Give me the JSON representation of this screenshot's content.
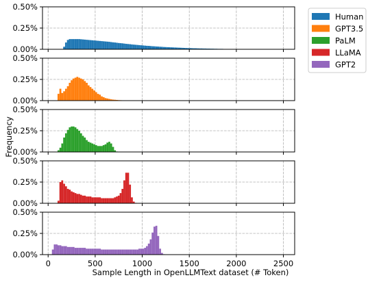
{
  "chart_data": {
    "type": "bar",
    "subtype": "stacked-panel-histogram",
    "xlabel": "Sample Length in OpenLLMText dataset (# Token)",
    "ylabel": "Frequency",
    "xlim": [
      -60,
      2620
    ],
    "ylim": [
      0,
      0.005
    ],
    "x_ticks": [
      0,
      500,
      1000,
      1500,
      2000,
      2500
    ],
    "x_tick_labels": [
      "0",
      "500",
      "1000",
      "1500",
      "2000",
      "2500"
    ],
    "y_ticks": [
      0,
      0.0025,
      0.005
    ],
    "y_tick_labels": [
      "0.00%",
      "0.25%",
      "0.50%"
    ],
    "grid": true,
    "legend_position": "outside-top-right",
    "bin_width": 20,
    "series": [
      {
        "name": "Human",
        "color": "#1f77b4",
        "bins": [
          [
            160,
            0.0003
          ],
          [
            180,
            0.0008
          ],
          [
            200,
            0.0011
          ],
          [
            220,
            0.0012
          ],
          [
            240,
            0.0012
          ],
          [
            260,
            0.0012
          ],
          [
            280,
            0.0012
          ],
          [
            300,
            0.0012
          ],
          [
            320,
            0.0012
          ],
          [
            340,
            0.00118
          ],
          [
            360,
            0.00116
          ],
          [
            380,
            0.00114
          ],
          [
            400,
            0.00112
          ],
          [
            420,
            0.0011
          ],
          [
            440,
            0.00108
          ],
          [
            460,
            0.00106
          ],
          [
            480,
            0.00104
          ],
          [
            500,
            0.00102
          ],
          [
            520,
            0.001
          ],
          [
            540,
            0.00098
          ],
          [
            560,
            0.00096
          ],
          [
            580,
            0.00094
          ],
          [
            600,
            0.00092
          ],
          [
            620,
            0.0009
          ],
          [
            640,
            0.00088
          ],
          [
            660,
            0.00085
          ],
          [
            680,
            0.00082
          ],
          [
            700,
            0.0008
          ],
          [
            720,
            0.00077
          ],
          [
            740,
            0.00074
          ],
          [
            760,
            0.00072
          ],
          [
            780,
            0.0007
          ],
          [
            800,
            0.00067
          ],
          [
            820,
            0.00064
          ],
          [
            840,
            0.00062
          ],
          [
            860,
            0.0006
          ],
          [
            880,
            0.00057
          ],
          [
            900,
            0.00055
          ],
          [
            920,
            0.00053
          ],
          [
            940,
            0.00051
          ],
          [
            960,
            0.00049
          ],
          [
            980,
            0.00047
          ],
          [
            1000,
            0.00045
          ],
          [
            1020,
            0.00043
          ],
          [
            1040,
            0.00041
          ],
          [
            1060,
            0.0004
          ],
          [
            1080,
            0.00038
          ],
          [
            1100,
            0.00036
          ],
          [
            1120,
            0.00035
          ],
          [
            1140,
            0.00033
          ],
          [
            1160,
            0.00032
          ],
          [
            1180,
            0.0003
          ],
          [
            1200,
            0.00029
          ],
          [
            1220,
            0.00027
          ],
          [
            1240,
            0.00026
          ],
          [
            1260,
            0.00025
          ],
          [
            1280,
            0.00024
          ],
          [
            1300,
            0.00023
          ],
          [
            1320,
            0.00022
          ],
          [
            1340,
            0.00021
          ],
          [
            1360,
            0.0002
          ],
          [
            1380,
            0.00019
          ],
          [
            1400,
            0.00018
          ],
          [
            1420,
            0.00017
          ],
          [
            1440,
            0.00016
          ],
          [
            1460,
            0.00015
          ],
          [
            1480,
            0.00014
          ],
          [
            1500,
            0.00014
          ],
          [
            1520,
            0.00013
          ],
          [
            1540,
            0.00012
          ],
          [
            1560,
            0.00012
          ],
          [
            1580,
            0.00011
          ],
          [
            1600,
            0.0001
          ],
          [
            1620,
            0.0001
          ],
          [
            1640,
            9e-05
          ],
          [
            1660,
            9e-05
          ],
          [
            1680,
            8e-05
          ],
          [
            1700,
            8e-05
          ],
          [
            1720,
            7e-05
          ],
          [
            1740,
            7e-05
          ],
          [
            1760,
            6e-05
          ],
          [
            1780,
            6e-05
          ],
          [
            1800,
            5e-05
          ],
          [
            1820,
            5e-05
          ],
          [
            1840,
            5e-05
          ],
          [
            1860,
            4e-05
          ],
          [
            1880,
            4e-05
          ],
          [
            1900,
            4e-05
          ],
          [
            1920,
            3e-05
          ],
          [
            1940,
            3e-05
          ],
          [
            1960,
            3e-05
          ],
          [
            1980,
            3e-05
          ],
          [
            2000,
            2e-05
          ],
          [
            2020,
            2e-05
          ],
          [
            2040,
            2e-05
          ],
          [
            2060,
            2e-05
          ],
          [
            2080,
            2e-05
          ],
          [
            2100,
            2e-05
          ],
          [
            2120,
            1e-05
          ],
          [
            2140,
            1e-05
          ],
          [
            2160,
            1e-05
          ],
          [
            2180,
            1e-05
          ],
          [
            2200,
            1e-05
          ],
          [
            2220,
            1e-05
          ],
          [
            2240,
            1e-05
          ],
          [
            2260,
            1e-05
          ],
          [
            2280,
            1e-05
          ]
        ]
      },
      {
        "name": "GPT3.5",
        "color": "#ff7f0e",
        "bins": [
          [
            100,
            0.0008
          ],
          [
            120,
            0.0014
          ],
          [
            140,
            0.0009
          ],
          [
            160,
            0.0011
          ],
          [
            180,
            0.0014
          ],
          [
            200,
            0.0017
          ],
          [
            220,
            0.0021
          ],
          [
            240,
            0.0024
          ],
          [
            260,
            0.0026
          ],
          [
            280,
            0.0027
          ],
          [
            300,
            0.0028
          ],
          [
            320,
            0.0027
          ],
          [
            340,
            0.0026
          ],
          [
            360,
            0.0025
          ],
          [
            380,
            0.0023
          ],
          [
            400,
            0.0021
          ],
          [
            420,
            0.0018
          ],
          [
            440,
            0.0016
          ],
          [
            460,
            0.0014
          ],
          [
            480,
            0.0012
          ],
          [
            500,
            0.001
          ],
          [
            520,
            0.0008
          ],
          [
            540,
            0.0007
          ],
          [
            560,
            0.0005
          ],
          [
            580,
            0.0004
          ],
          [
            600,
            0.0003
          ],
          [
            620,
            0.00025
          ],
          [
            640,
            0.0002
          ],
          [
            660,
            0.00015
          ],
          [
            680,
            0.00012
          ],
          [
            700,
            0.0001
          ],
          [
            720,
            8e-05
          ],
          [
            740,
            6e-05
          ],
          [
            760,
            5e-05
          ],
          [
            780,
            4e-05
          ],
          [
            800,
            3e-05
          ],
          [
            820,
            2e-05
          ]
        ]
      },
      {
        "name": "PaLM",
        "color": "#2ca02c",
        "bins": [
          [
            100,
            0.0002
          ],
          [
            120,
            0.0005
          ],
          [
            140,
            0.001
          ],
          [
            160,
            0.0017
          ],
          [
            180,
            0.0022
          ],
          [
            200,
            0.0026
          ],
          [
            220,
            0.0029
          ],
          [
            240,
            0.003
          ],
          [
            260,
            0.003
          ],
          [
            280,
            0.0029
          ],
          [
            300,
            0.0027
          ],
          [
            320,
            0.0025
          ],
          [
            340,
            0.0022
          ],
          [
            360,
            0.0019
          ],
          [
            380,
            0.0017
          ],
          [
            400,
            0.0014
          ],
          [
            420,
            0.0012
          ],
          [
            440,
            0.0011
          ],
          [
            460,
            0.001
          ],
          [
            480,
            0.0009
          ],
          [
            500,
            0.0008
          ],
          [
            520,
            0.0007
          ],
          [
            540,
            0.0007
          ],
          [
            560,
            0.0007
          ],
          [
            580,
            0.0008
          ],
          [
            600,
            0.0009
          ],
          [
            620,
            0.0011
          ],
          [
            640,
            0.0012
          ],
          [
            660,
            0.001
          ],
          [
            680,
            0.0006
          ],
          [
            700,
            0.0002
          ],
          [
            720,
            5e-05
          ]
        ]
      },
      {
        "name": "LLaMA",
        "color": "#d62728",
        "bins": [
          [
            100,
            0.0003
          ],
          [
            120,
            0.0025
          ],
          [
            140,
            0.0027
          ],
          [
            160,
            0.0023
          ],
          [
            180,
            0.002
          ],
          [
            200,
            0.0017
          ],
          [
            220,
            0.0016
          ],
          [
            240,
            0.0014
          ],
          [
            260,
            0.0013
          ],
          [
            280,
            0.0012
          ],
          [
            300,
            0.0011
          ],
          [
            320,
            0.0011
          ],
          [
            340,
            0.001
          ],
          [
            360,
            0.0009
          ],
          [
            380,
            0.0009
          ],
          [
            400,
            0.0008
          ],
          [
            420,
            0.0008
          ],
          [
            440,
            0.0008
          ],
          [
            460,
            0.0007
          ],
          [
            480,
            0.0007
          ],
          [
            500,
            0.0007
          ],
          [
            520,
            0.0007
          ],
          [
            540,
            0.0007
          ],
          [
            560,
            0.0006
          ],
          [
            580,
            0.0006
          ],
          [
            600,
            0.0006
          ],
          [
            620,
            0.0006
          ],
          [
            640,
            0.0006
          ],
          [
            660,
            0.0006
          ],
          [
            680,
            0.0006
          ],
          [
            700,
            0.0007
          ],
          [
            720,
            0.0008
          ],
          [
            740,
            0.0009
          ],
          [
            760,
            0.0012
          ],
          [
            780,
            0.0017
          ],
          [
            800,
            0.0027
          ],
          [
            820,
            0.0036
          ],
          [
            840,
            0.0036
          ],
          [
            860,
            0.0022
          ],
          [
            880,
            0.0007
          ],
          [
            900,
            0.0002
          ],
          [
            920,
            5e-05
          ]
        ]
      },
      {
        "name": "GPT2",
        "color": "#9467bd",
        "bins": [
          [
            40,
            0.0006
          ],
          [
            60,
            0.0012
          ],
          [
            80,
            0.0012
          ],
          [
            100,
            0.0011
          ],
          [
            120,
            0.0011
          ],
          [
            140,
            0.001
          ],
          [
            160,
            0.001
          ],
          [
            180,
            0.001
          ],
          [
            200,
            0.0009
          ],
          [
            220,
            0.0009
          ],
          [
            240,
            0.0009
          ],
          [
            260,
            0.0009
          ],
          [
            280,
            0.0008
          ],
          [
            300,
            0.0008
          ],
          [
            320,
            0.0008
          ],
          [
            340,
            0.0008
          ],
          [
            360,
            0.0008
          ],
          [
            380,
            0.0008
          ],
          [
            400,
            0.0007
          ],
          [
            420,
            0.0007
          ],
          [
            440,
            0.0007
          ],
          [
            460,
            0.0007
          ],
          [
            480,
            0.0007
          ],
          [
            500,
            0.0007
          ],
          [
            520,
            0.0007
          ],
          [
            540,
            0.0007
          ],
          [
            560,
            0.0006
          ],
          [
            580,
            0.0006
          ],
          [
            600,
            0.0006
          ],
          [
            620,
            0.0006
          ],
          [
            640,
            0.0006
          ],
          [
            660,
            0.0006
          ],
          [
            680,
            0.0006
          ],
          [
            700,
            0.0006
          ],
          [
            720,
            0.0006
          ],
          [
            740,
            0.0006
          ],
          [
            760,
            0.0006
          ],
          [
            780,
            0.0006
          ],
          [
            800,
            0.0006
          ],
          [
            820,
            0.0006
          ],
          [
            840,
            0.0006
          ],
          [
            860,
            0.0006
          ],
          [
            880,
            0.0006
          ],
          [
            900,
            0.0006
          ],
          [
            920,
            0.0006
          ],
          [
            940,
            0.0006
          ],
          [
            960,
            0.0007
          ],
          [
            980,
            0.0007
          ],
          [
            1000,
            0.0007
          ],
          [
            1020,
            0.0008
          ],
          [
            1040,
            0.001
          ],
          [
            1060,
            0.0013
          ],
          [
            1080,
            0.0018
          ],
          [
            1100,
            0.0026
          ],
          [
            1120,
            0.0033
          ],
          [
            1140,
            0.0034
          ],
          [
            1160,
            0.0022
          ],
          [
            1180,
            0.0007
          ],
          [
            1200,
            0.0002
          ],
          [
            1220,
            5e-05
          ]
        ]
      }
    ]
  }
}
